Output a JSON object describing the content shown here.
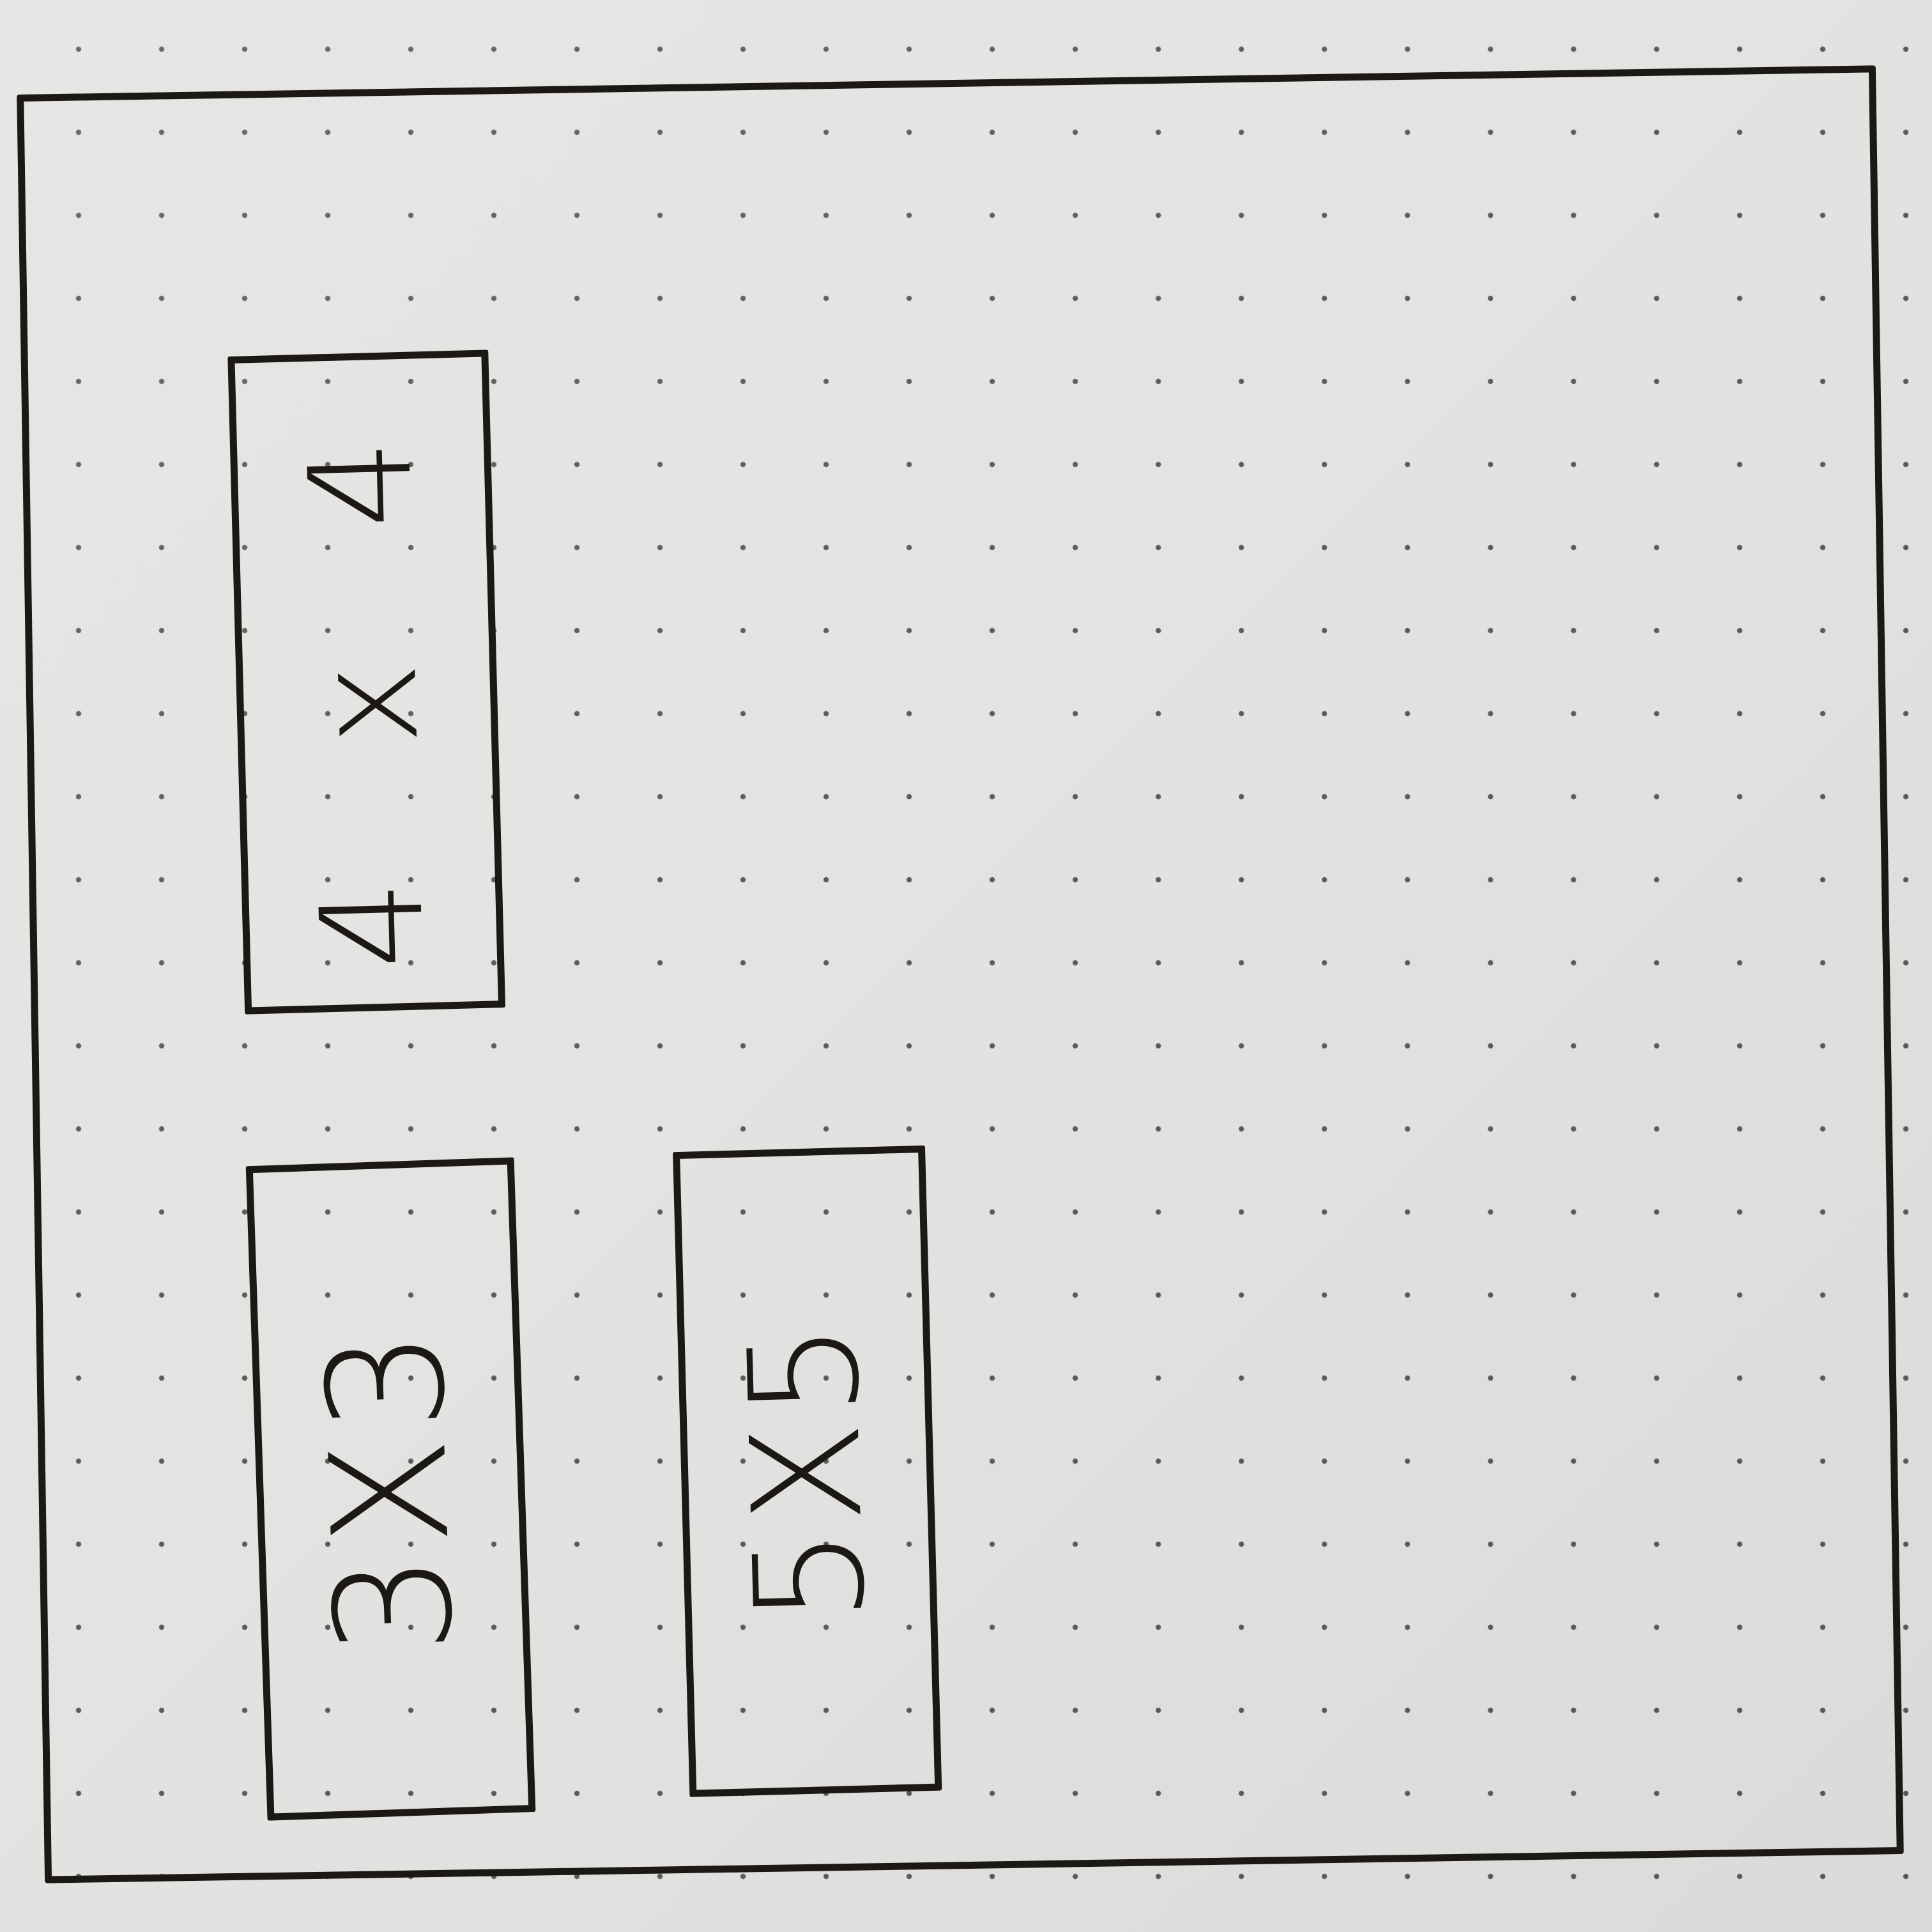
{
  "grid_options": [
    {
      "id": "4x4",
      "label": "4 x 4"
    },
    {
      "id": "3x3",
      "label": "3X3"
    },
    {
      "id": "5x5",
      "label": "5X5"
    }
  ],
  "colors": {
    "ink": "#1c1814",
    "paper": "#e3e3e1",
    "dot": "#5a5a58"
  }
}
